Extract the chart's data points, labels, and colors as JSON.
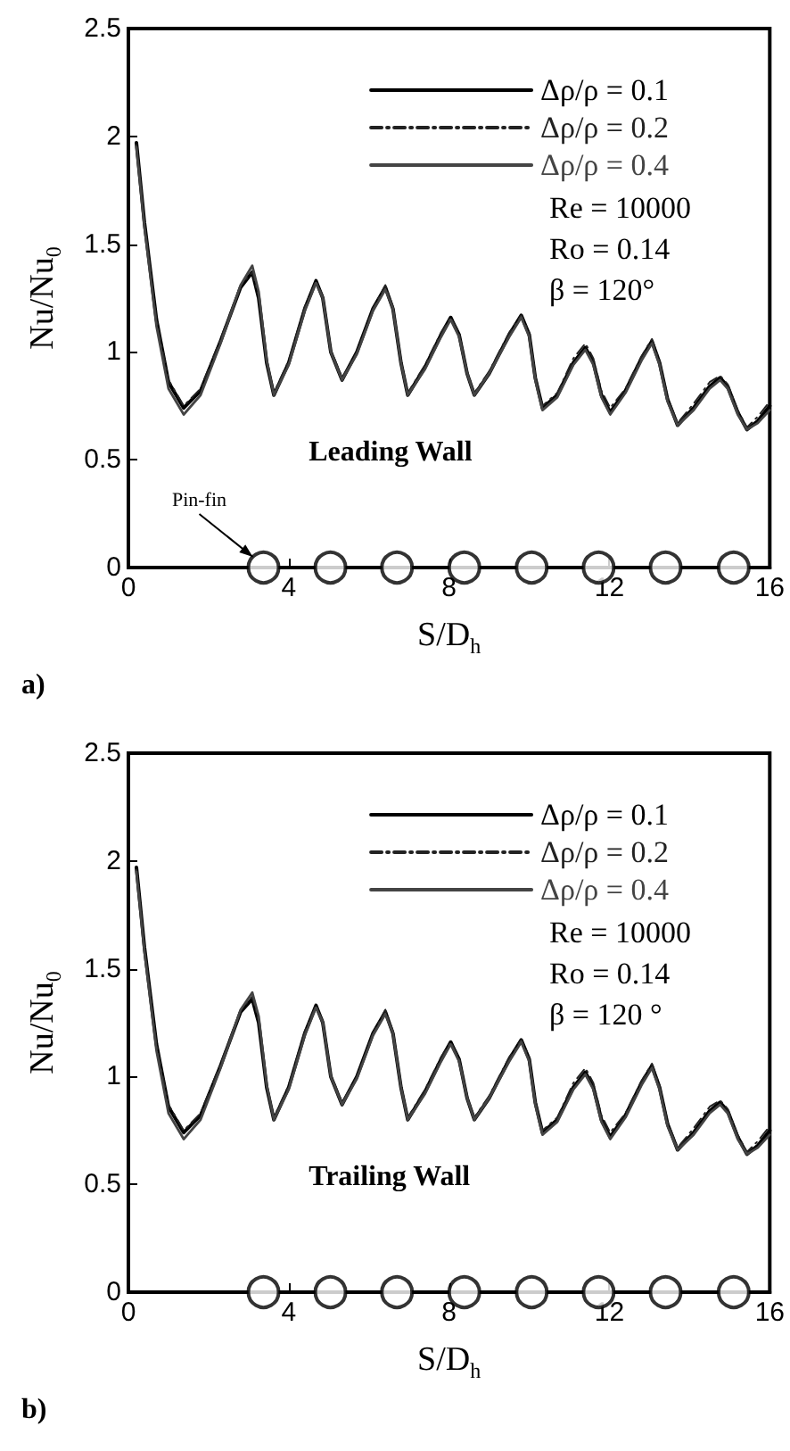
{
  "chart_data": [
    {
      "type": "line",
      "xlabel": "S/D$_{h}$",
      "ylabel": "Nu/Nu$_{0}$",
      "xlim": [
        0,
        16
      ],
      "xticks": [
        0,
        4,
        8,
        12,
        16
      ],
      "ylim": [
        0,
        2.5
      ],
      "yticks": [
        0,
        0.5,
        1,
        1.5,
        2,
        2.5
      ],
      "legend": "top right",
      "grid": false,
      "x": [
        0.2,
        0.4,
        0.7,
        1.0,
        1.38,
        1.8,
        2.3,
        2.8,
        3.09,
        3.25,
        3.45,
        3.63,
        4.0,
        4.4,
        4.68,
        4.85,
        5.05,
        5.33,
        5.7,
        6.1,
        6.41,
        6.6,
        6.8,
        6.97,
        7.4,
        7.8,
        8.04,
        8.25,
        8.45,
        8.63,
        9.0,
        9.5,
        9.8,
        10.0,
        10.15,
        10.33,
        10.7,
        11.1,
        11.4,
        11.6,
        11.8,
        12.02,
        12.4,
        12.8,
        13.06,
        13.25,
        13.45,
        13.7,
        14.1,
        14.5,
        14.76,
        14.95,
        15.2,
        15.43,
        15.7,
        16.0
      ],
      "series": [
        {
          "name": "Δρ/ρ = 0.1",
          "color": "#000000",
          "line_style": "solid",
          "values": [
            1.97,
            1.6,
            1.15,
            0.86,
            0.74,
            0.82,
            1.05,
            1.3,
            1.37,
            1.25,
            0.95,
            0.8,
            0.95,
            1.2,
            1.33,
            1.25,
            1.0,
            0.87,
            1.0,
            1.2,
            1.3,
            1.2,
            0.95,
            0.8,
            0.93,
            1.08,
            1.16,
            1.08,
            0.9,
            0.8,
            0.9,
            1.08,
            1.17,
            1.08,
            0.88,
            0.74,
            0.8,
            0.95,
            1.02,
            0.95,
            0.8,
            0.72,
            0.82,
            0.97,
            1.05,
            0.95,
            0.78,
            0.66,
            0.74,
            0.84,
            0.88,
            0.84,
            0.72,
            0.64,
            0.68,
            0.75
          ]
        },
        {
          "name": "Δρ/ρ = 0.2",
          "color": "#222222",
          "line_style": "dashed",
          "values": [
            1.96,
            1.6,
            1.15,
            0.87,
            0.75,
            0.83,
            1.06,
            1.31,
            1.37,
            1.26,
            0.96,
            0.81,
            0.96,
            1.21,
            1.33,
            1.26,
            1.01,
            0.88,
            1.0,
            1.2,
            1.31,
            1.21,
            0.96,
            0.81,
            0.94,
            1.09,
            1.16,
            1.09,
            0.91,
            0.81,
            0.91,
            1.09,
            1.17,
            1.09,
            0.89,
            0.75,
            0.81,
            0.97,
            1.04,
            0.97,
            0.82,
            0.74,
            0.83,
            0.98,
            1.06,
            0.96,
            0.79,
            0.67,
            0.76,
            0.86,
            0.89,
            0.85,
            0.73,
            0.65,
            0.7,
            0.77
          ]
        },
        {
          "name": "Δρ/ρ = 0.4",
          "color": "#444444",
          "line_style": "solid",
          "values": [
            1.95,
            1.58,
            1.12,
            0.83,
            0.71,
            0.8,
            1.04,
            1.31,
            1.4,
            1.28,
            0.96,
            0.8,
            0.94,
            1.19,
            1.32,
            1.25,
            1.0,
            0.87,
            0.99,
            1.19,
            1.29,
            1.2,
            0.95,
            0.8,
            0.92,
            1.07,
            1.15,
            1.07,
            0.9,
            0.8,
            0.9,
            1.07,
            1.16,
            1.07,
            0.87,
            0.73,
            0.79,
            0.94,
            1.01,
            0.94,
            0.79,
            0.71,
            0.81,
            0.96,
            1.04,
            0.94,
            0.77,
            0.66,
            0.73,
            0.83,
            0.87,
            0.83,
            0.71,
            0.64,
            0.67,
            0.73
          ]
        },
        {
          "type": "scatter",
          "marker": "circle",
          "color": "#000000",
          "x": [
            3.37,
            5.04,
            6.7,
            8.38,
            10.06,
            11.73,
            13.4,
            15.1
          ],
          "values": [
            0,
            0,
            0,
            0,
            0,
            0,
            0,
            0
          ]
        }
      ],
      "annotations": [
        "Re = 10000",
        "Ro = 0.14",
        "β = 120°",
        {
          "text": "Pin-fin",
          "x": 3.37,
          "y": 0
        },
        "Leading Wall",
        "a)"
      ]
    },
    {
      "type": "line",
      "xlabel": "S/D$_{h}$",
      "ylabel": "Nu/Nu$_{0}$",
      "xlim": [
        0,
        16
      ],
      "xticks": [
        0,
        4,
        8,
        12,
        16
      ],
      "ylim": [
        0,
        2.5
      ],
      "yticks": [
        0,
        0.5,
        1,
        1.5,
        2,
        2.5
      ],
      "legend": "top right",
      "grid": false,
      "x": [
        0.2,
        0.4,
        0.7,
        1.0,
        1.38,
        1.8,
        2.3,
        2.8,
        3.09,
        3.25,
        3.45,
        3.63,
        4.0,
        4.4,
        4.68,
        4.85,
        5.05,
        5.33,
        5.7,
        6.1,
        6.41,
        6.6,
        6.8,
        6.97,
        7.4,
        7.8,
        8.04,
        8.25,
        8.45,
        8.63,
        9.0,
        9.5,
        9.8,
        10.0,
        10.15,
        10.33,
        10.7,
        11.1,
        11.4,
        11.6,
        11.8,
        12.02,
        12.4,
        12.8,
        13.06,
        13.25,
        13.45,
        13.7,
        14.1,
        14.5,
        14.76,
        14.95,
        15.2,
        15.43,
        15.7,
        16.0
      ],
      "series": [
        {
          "name": "Δρ/ρ = 0.1",
          "color": "#000000",
          "line_style": "solid",
          "values": [
            1.97,
            1.6,
            1.15,
            0.86,
            0.74,
            0.82,
            1.05,
            1.3,
            1.36,
            1.25,
            0.95,
            0.8,
            0.95,
            1.2,
            1.33,
            1.25,
            1.0,
            0.87,
            1.0,
            1.2,
            1.3,
            1.2,
            0.95,
            0.8,
            0.93,
            1.08,
            1.16,
            1.08,
            0.9,
            0.8,
            0.9,
            1.08,
            1.17,
            1.08,
            0.88,
            0.74,
            0.8,
            0.95,
            1.02,
            0.95,
            0.8,
            0.72,
            0.82,
            0.97,
            1.05,
            0.95,
            0.78,
            0.66,
            0.74,
            0.84,
            0.88,
            0.84,
            0.72,
            0.64,
            0.68,
            0.75
          ]
        },
        {
          "name": "Δρ/ρ = 0.2",
          "color": "#222222",
          "line_style": "dashed",
          "values": [
            1.96,
            1.6,
            1.15,
            0.87,
            0.75,
            0.83,
            1.06,
            1.31,
            1.37,
            1.26,
            0.96,
            0.81,
            0.96,
            1.21,
            1.33,
            1.26,
            1.01,
            0.88,
            1.0,
            1.2,
            1.31,
            1.21,
            0.96,
            0.81,
            0.94,
            1.09,
            1.16,
            1.09,
            0.91,
            0.81,
            0.91,
            1.09,
            1.17,
            1.09,
            0.89,
            0.75,
            0.81,
            0.97,
            1.04,
            0.97,
            0.82,
            0.74,
            0.83,
            0.98,
            1.06,
            0.96,
            0.79,
            0.67,
            0.76,
            0.86,
            0.89,
            0.85,
            0.73,
            0.65,
            0.7,
            0.77
          ]
        },
        {
          "name": "Δρ/ρ = 0.4",
          "color": "#444444",
          "line_style": "solid",
          "values": [
            1.95,
            1.58,
            1.12,
            0.83,
            0.71,
            0.8,
            1.04,
            1.31,
            1.39,
            1.28,
            0.96,
            0.8,
            0.94,
            1.19,
            1.32,
            1.25,
            1.0,
            0.87,
            0.99,
            1.19,
            1.29,
            1.2,
            0.95,
            0.8,
            0.92,
            1.07,
            1.15,
            1.07,
            0.9,
            0.8,
            0.9,
            1.07,
            1.16,
            1.07,
            0.87,
            0.73,
            0.79,
            0.94,
            1.01,
            0.94,
            0.79,
            0.71,
            0.81,
            0.96,
            1.04,
            0.94,
            0.77,
            0.66,
            0.73,
            0.83,
            0.87,
            0.83,
            0.71,
            0.64,
            0.67,
            0.73
          ]
        },
        {
          "type": "scatter",
          "marker": "circle",
          "color": "#000000",
          "x": [
            3.37,
            5.04,
            6.7,
            8.38,
            10.06,
            11.73,
            13.4,
            15.1
          ],
          "values": [
            0,
            0,
            0,
            0,
            0,
            0,
            0,
            0
          ]
        }
      ],
      "annotations": [
        "Re = 10000",
        "Ro = 0.14",
        "β = 120 °",
        "Trailing Wall",
        "b)"
      ]
    }
  ]
}
